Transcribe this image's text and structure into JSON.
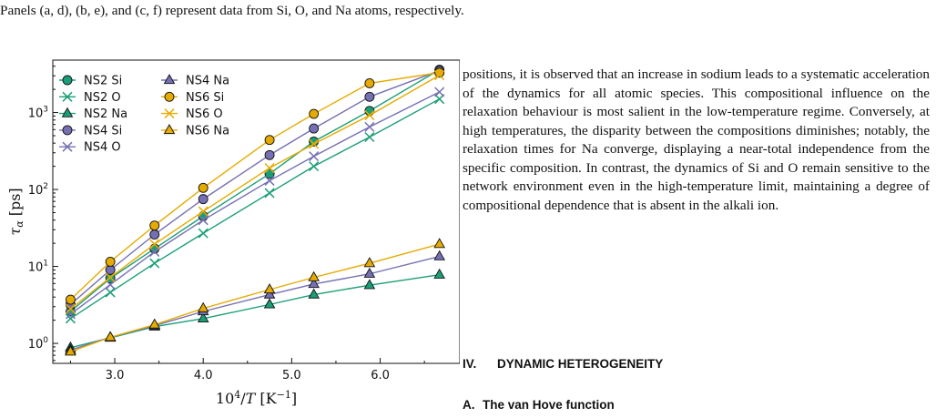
{
  "caption_top": "Panels (a, d), (b, e), and (c, f) represent data from Si, O, and Na atoms, respectively.",
  "body_text": "positions, it is observed that an increase in sodium leads to a systematic acceleration of the dynamics for all atomic species. This compositional influence on the relaxation behaviour is most salient in the low-temperature regime. Conversely, at high temperatures, the disparity between the compositions diminishes; notably, the relaxation times for Na converge, displaying a near-total independence from the specific composition. In contrast, the dynamics of Si and O remain sensitive to the network environment even in the high-temperature limit, maintaining a degree of compositional dependence that is absent in the alkali ion.",
  "section_heading": {
    "number": "IV.",
    "title": "DYNAMIC HETEROGENEITY"
  },
  "subsection_heading": {
    "number": "A.",
    "title": "The van Hove function"
  },
  "chart_data": {
    "type": "line",
    "xlabel": "10^4/T [K^-1]",
    "ylabel": "τ_α [ps]",
    "xlim": [
      2.3,
      6.9
    ],
    "ylim": [
      0.55,
      4800
    ],
    "yscale": "log",
    "x_ticks": [
      "3.0",
      "4.0",
      "5.0",
      "6.0"
    ],
    "y_ticks": [
      {
        "value": 1,
        "label": "10^0"
      },
      {
        "value": 10,
        "label": "10^1"
      },
      {
        "value": 100,
        "label": "10^2"
      },
      {
        "value": 1000,
        "label": "10^3"
      }
    ],
    "legend_position": "top-left",
    "x": [
      2.5,
      2.95,
      3.45,
      4.0,
      4.75,
      5.25,
      5.88,
      6.67
    ],
    "series": [
      {
        "name": "NS2 Si",
        "color": "#1b9e77",
        "marker": "circle",
        "values": [
          2.6,
          7.0,
          17.0,
          45,
          160,
          420,
          1050,
          3600
        ]
      },
      {
        "name": "NS2 O",
        "color": "#1b9e77",
        "marker": "x",
        "values": [
          2.1,
          4.6,
          11.0,
          27,
          90,
          200,
          480,
          1500
        ]
      },
      {
        "name": "NS2 Na",
        "color": "#1b9e77",
        "marker": "triangle",
        "values": [
          0.88,
          1.18,
          1.65,
          2.1,
          3.2,
          4.3,
          5.7,
          7.8
        ]
      },
      {
        "name": "NS4 Si",
        "color": "#7570b3",
        "marker": "circle",
        "values": [
          3.2,
          9.0,
          26,
          75,
          280,
          620,
          1600,
          3500
        ]
      },
      {
        "name": "NS4 O",
        "color": "#7570b3",
        "marker": "x",
        "values": [
          2.4,
          5.8,
          15.5,
          40,
          130,
          270,
          650,
          1850
        ]
      },
      {
        "name": "NS4 Na",
        "color": "#7570b3",
        "marker": "triangle",
        "values": [
          0.82,
          1.2,
          1.7,
          2.6,
          4.3,
          5.9,
          8.0,
          13.5
        ]
      },
      {
        "name": "NS6 Si",
        "color": "#e6ab02",
        "marker": "circle",
        "values": [
          3.7,
          11.5,
          34,
          105,
          440,
          960,
          2400,
          3300
        ]
      },
      {
        "name": "NS6 O",
        "color": "#e6ab02",
        "marker": "x",
        "values": [
          2.8,
          7.2,
          19.5,
          52,
          190,
          390,
          920,
          3050
        ]
      },
      {
        "name": "NS6 Na",
        "color": "#e6ab02",
        "marker": "triangle",
        "values": [
          0.78,
          1.2,
          1.75,
          2.85,
          5.0,
          7.2,
          11.0,
          19.5
        ]
      }
    ]
  }
}
